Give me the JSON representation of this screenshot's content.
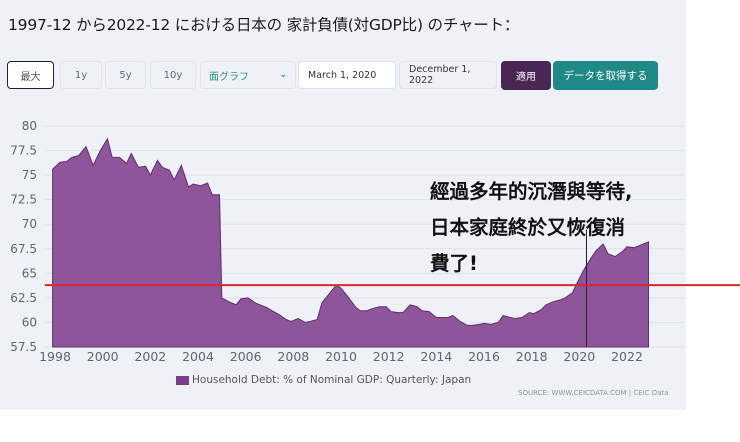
{
  "title": "1997-12 から2022-12 における日本の 家計負債(対GDP比) のチャート：",
  "controls": {
    "range_buttons": [
      {
        "label": "最大",
        "active": true
      },
      {
        "label": "1y",
        "active": false
      },
      {
        "label": "5y",
        "active": false
      },
      {
        "label": "10y",
        "active": false
      }
    ],
    "chart_type_select": {
      "value": "面グラフ",
      "icon": "chevron-down-icon"
    },
    "start_date": "March 1, 2020",
    "end_date": "December 1, 2022",
    "apply_label": "適用",
    "get_data_label": "データを取得する"
  },
  "annotation": {
    "lines": [
      "經過多年的沉潛與等待,",
      "日本家庭終於又恢復消",
      "費了!"
    ],
    "hline_value": 63.8,
    "hline_color": "#d62a2a",
    "vline_x": 2020.3
  },
  "legend": {
    "label": "Household Debt: % of Nominal GDP: Quarterly: Japan",
    "color": "#7d3b8c"
  },
  "source": "SOURCE: WWW.CEICDATA.COM | CEIC Data",
  "colors": {
    "area_fill": "#8e559b",
    "area_stroke": "#5e2f6a",
    "panel_bg": "#eef2f7",
    "apply_bg": "#4a2655",
    "get_data_bg": "#1f8a85"
  },
  "chart_data": {
    "type": "area",
    "title": "Household Debt: % of Nominal GDP: Quarterly: Japan",
    "xlabel": "",
    "ylabel": "",
    "ylim": [
      57.5,
      80
    ],
    "xlim": [
      1997.9,
      2022.9
    ],
    "yticks": [
      "80",
      "77.5",
      "75",
      "72.5",
      "70",
      "67.5",
      "65",
      "62.5",
      "60",
      "57.5"
    ],
    "xticks": [
      "1998",
      "2000",
      "2002",
      "2004",
      "2006",
      "2008",
      "2010",
      "2012",
      "2014",
      "2016",
      "2018",
      "2020",
      "2022"
    ],
    "grid": "horizontal",
    "legend_position": "bottom",
    "x": [
      1997.9,
      1998.2,
      1998.5,
      1998.7,
      1999.0,
      1999.3,
      1999.6,
      1999.9,
      2000.2,
      2000.4,
      2000.7,
      2001.0,
      2001.2,
      2001.5,
      2001.8,
      2002.0,
      2002.3,
      2002.5,
      2002.8,
      2003.0,
      2003.3,
      2003.6,
      2003.8,
      2004.1,
      2004.4,
      2004.6,
      2004.9,
      2005.0,
      2005.3,
      2005.6,
      2005.8,
      2006.1,
      2006.4,
      2006.6,
      2006.9,
      2007.1,
      2007.4,
      2007.7,
      2007.9,
      2008.2,
      2008.5,
      2008.7,
      2009.0,
      2009.2,
      2009.5,
      2009.8,
      2010.0,
      2010.3,
      2010.6,
      2010.8,
      2011.1,
      2011.3,
      2011.6,
      2011.9,
      2012.1,
      2012.4,
      2012.6,
      2012.9,
      2013.2,
      2013.4,
      2013.7,
      2014.0,
      2014.2,
      2014.5,
      2014.7,
      2015.0,
      2015.3,
      2015.5,
      2015.8,
      2016.0,
      2016.3,
      2016.6,
      2016.8,
      2017.1,
      2017.3,
      2017.6,
      2017.9,
      2018.1,
      2018.4,
      2018.6,
      2018.9,
      2019.2,
      2019.4,
      2019.7,
      2019.9,
      2020.2,
      2020.5,
      2020.7,
      2021.0,
      2021.2,
      2021.5,
      2021.8,
      2022.0,
      2022.3,
      2022.5,
      2022.9
    ],
    "values": [
      75.6,
      76.3,
      76.4,
      76.8,
      77.0,
      77.9,
      76.0,
      77.5,
      78.7,
      76.8,
      76.8,
      76.2,
      77.2,
      75.8,
      75.9,
      75.0,
      76.5,
      75.8,
      75.5,
      74.5,
      76.0,
      73.8,
      74.1,
      73.9,
      74.2,
      73.0,
      73.0,
      62.5,
      62.1,
      61.8,
      62.4,
      62.5,
      62.0,
      61.8,
      61.5,
      61.2,
      60.8,
      60.3,
      60.1,
      60.4,
      60.0,
      60.1,
      60.3,
      62.0,
      62.9,
      63.8,
      63.5,
      62.6,
      61.6,
      61.2,
      61.2,
      61.4,
      61.6,
      61.6,
      61.1,
      61.0,
      61.0,
      61.8,
      61.6,
      61.2,
      61.1,
      60.5,
      60.5,
      60.5,
      60.7,
      60.1,
      59.7,
      59.7,
      59.8,
      59.9,
      59.8,
      60.0,
      60.7,
      60.5,
      60.4,
      60.5,
      61.0,
      60.9,
      61.3,
      61.8,
      62.1,
      62.3,
      62.5,
      63.0,
      64.0,
      65.4,
      66.6,
      67.3,
      68.0,
      67.0,
      66.7,
      67.2,
      67.7,
      67.6,
      67.8,
      68.2
    ]
  }
}
